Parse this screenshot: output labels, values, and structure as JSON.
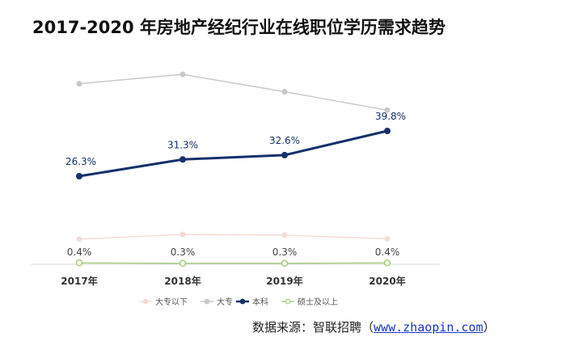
{
  "chart_data": {
    "type": "line",
    "title": "2017-2020 年房地产经纪行业在线职位学历需求趋势",
    "categories": [
      "2017年",
      "2018年",
      "2019年",
      "2020年"
    ],
    "y_range": [
      0,
      62
    ],
    "y_axis_shown": false,
    "grid": false,
    "legend_position": "bottom",
    "series": [
      {
        "name": "大专以下",
        "values": [
          7.5,
          8.9,
          8.7,
          7.6
        ],
        "color": "#f2ddd6",
        "labels": [
          "",
          "",
          "",
          ""
        ]
      },
      {
        "name": "大专",
        "values": [
          53.9,
          56.7,
          51.5,
          46.0
        ],
        "color": "#c8c8c8",
        "labels": [
          "",
          "",
          "",
          ""
        ]
      },
      {
        "name": "本科",
        "values": [
          26.3,
          31.3,
          32.6,
          39.8
        ],
        "color": "#15306b",
        "labels": [
          "26.3%",
          "31.3%",
          "32.6%",
          "39.8%"
        ]
      },
      {
        "name": "硕士及以上",
        "values": [
          0.4,
          0.3,
          0.3,
          0.4
        ],
        "color": "#a6cc7a",
        "labels": [
          "0.4%",
          "0.3%",
          "0.3%",
          "0.4%"
        ]
      }
    ]
  },
  "source": {
    "prefix": "数据来源：智联招聘（",
    "url": "www.zhaopin.com",
    "suffix": "）"
  }
}
